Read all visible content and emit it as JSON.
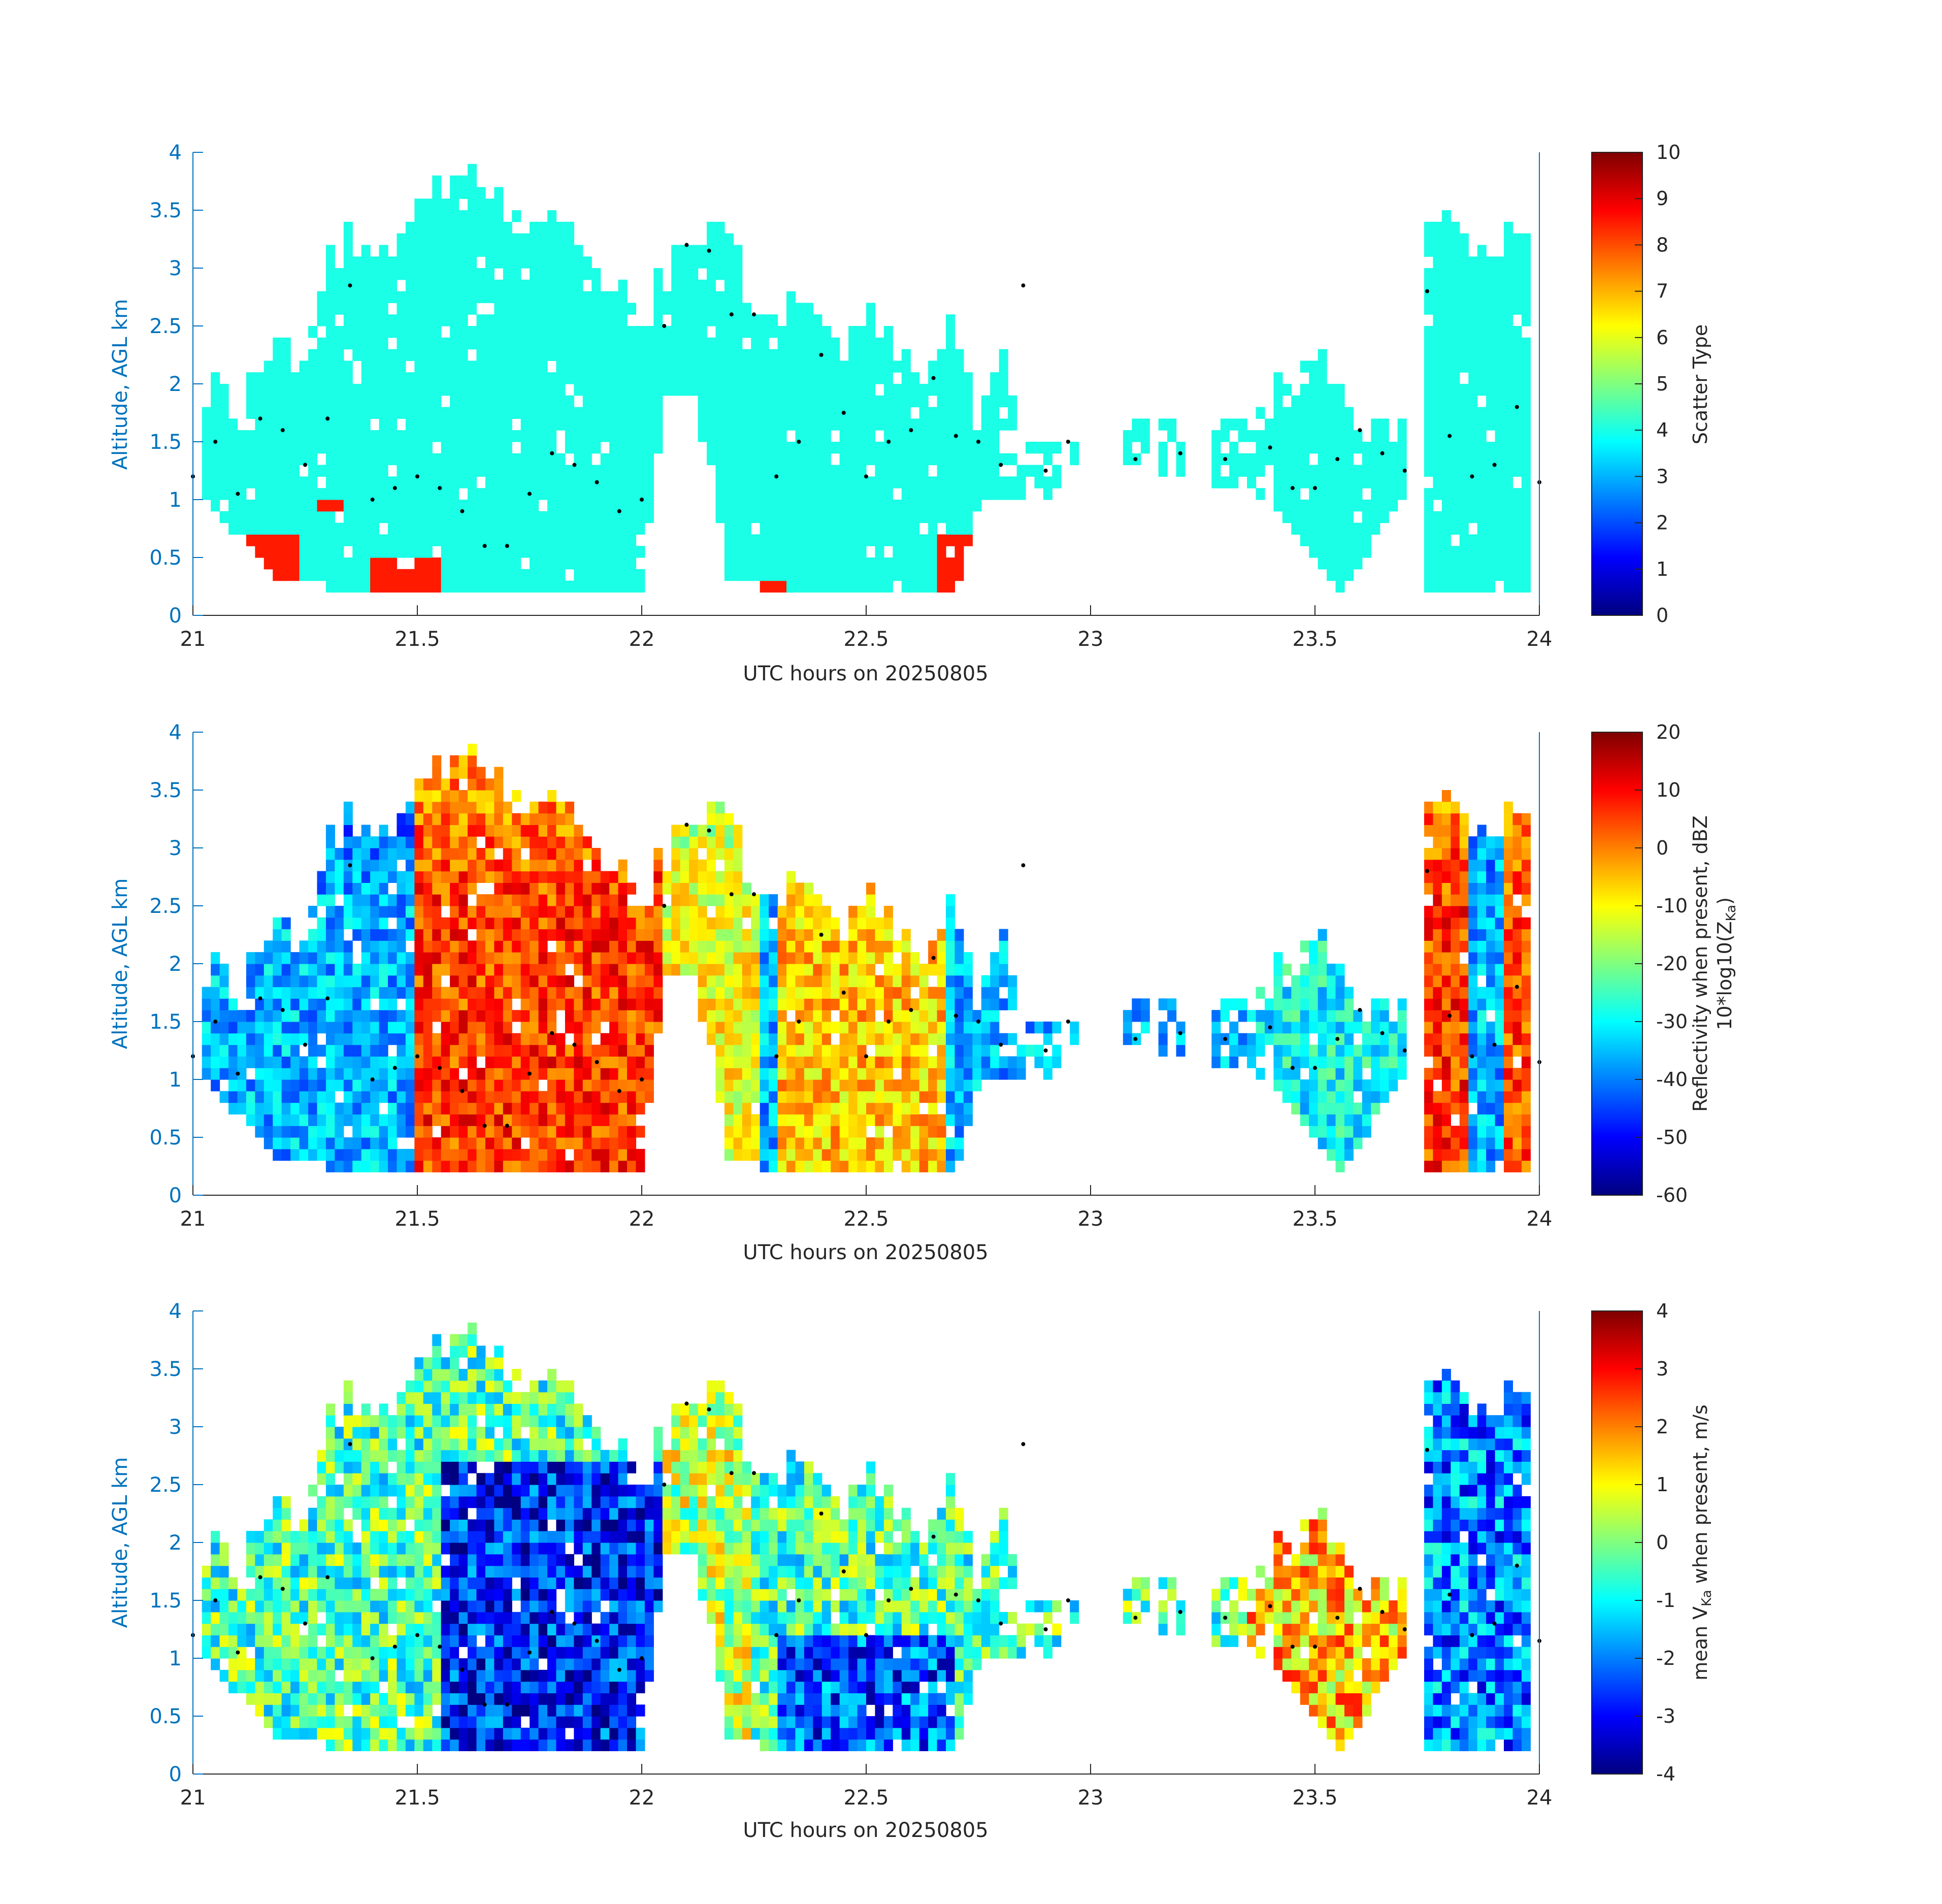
{
  "figure": {
    "xlabel": "UTC hours on 20250805",
    "ylabel": "Altitude, AGL km",
    "xlim": [
      21,
      24
    ],
    "ylim": [
      0,
      4
    ],
    "xticks": [
      "21",
      "21.5",
      "22",
      "22.5",
      "23",
      "23.5",
      "24"
    ],
    "yticks": [
      "0",
      "0.5",
      "1",
      "1.5",
      "2",
      "2.5",
      "3",
      "3.5",
      "4"
    ],
    "colormap": "jet",
    "axis_color": "#0072bd",
    "text_color": "#262626"
  },
  "chart_data": [
    {
      "type": "heatmap",
      "panel": "scatter-type",
      "xlabel": "UTC hours on 20250805",
      "ylabel": "Altitude, AGL km",
      "xlim": [
        21,
        24
      ],
      "ylim": [
        0,
        4
      ],
      "colorbar": {
        "label": "Scatter Type",
        "clim": [
          0,
          10
        ],
        "ticks": [
          "0",
          "1",
          "2",
          "3",
          "4",
          "5",
          "6",
          "7",
          "8",
          "9",
          "10"
        ]
      },
      "cloud_top_km": [
        [
          21.0,
          1.7
        ],
        [
          21.05,
          2.0
        ],
        [
          21.1,
          1.6
        ],
        [
          21.15,
          2.3
        ],
        [
          21.2,
          2.5
        ],
        [
          21.25,
          2.0
        ],
        [
          21.3,
          3.1
        ],
        [
          21.35,
          3.3
        ],
        [
          21.4,
          3.1
        ],
        [
          21.45,
          3.1
        ],
        [
          21.5,
          3.5
        ],
        [
          21.55,
          3.7
        ],
        [
          21.6,
          3.8
        ],
        [
          21.65,
          3.7
        ],
        [
          21.7,
          3.4
        ],
        [
          21.75,
          3.5
        ],
        [
          21.8,
          3.6
        ],
        [
          21.85,
          3.3
        ],
        [
          21.9,
          3.1
        ],
        [
          21.95,
          2.8
        ],
        [
          22.0,
          2.5
        ],
        [
          22.05,
          2.9
        ],
        [
          22.1,
          3.2
        ],
        [
          22.15,
          3.3
        ],
        [
          22.2,
          3.2
        ],
        [
          22.25,
          2.7
        ],
        [
          22.3,
          2.6
        ],
        [
          22.35,
          2.6
        ],
        [
          22.4,
          2.5
        ],
        [
          22.45,
          2.4
        ],
        [
          22.5,
          2.6
        ],
        [
          22.55,
          2.5
        ],
        [
          22.6,
          2.2
        ],
        [
          22.65,
          2.1
        ],
        [
          22.7,
          2.5
        ],
        [
          22.75,
          1.6
        ],
        [
          22.8,
          2.5
        ],
        [
          22.85,
          1.5
        ],
        [
          22.9,
          1.4
        ],
        [
          22.95,
          1.6
        ],
        [
          23.0,
          1.5
        ],
        [
          23.1,
          1.6
        ],
        [
          23.2,
          1.6
        ],
        [
          23.3,
          1.6
        ],
        [
          23.4,
          1.9
        ],
        [
          23.45,
          2.0
        ],
        [
          23.5,
          2.3
        ],
        [
          23.55,
          1.9
        ],
        [
          23.6,
          1.7
        ],
        [
          23.65,
          1.6
        ],
        [
          23.7,
          1.5
        ],
        [
          23.75,
          3.2
        ],
        [
          23.8,
          3.4
        ],
        [
          23.85,
          3.0
        ],
        [
          23.9,
          3.2
        ],
        [
          23.95,
          3.3
        ],
        [
          24.0,
          3.3
        ]
      ],
      "cloud_base_km": [
        [
          21.0,
          1.1
        ],
        [
          21.2,
          0.3
        ],
        [
          21.4,
          0.2
        ],
        [
          21.5,
          0.2
        ],
        [
          22.0,
          0.2
        ],
        [
          22.05,
          1.9
        ],
        [
          22.15,
          1.4
        ],
        [
          22.2,
          0.2
        ],
        [
          22.3,
          0.2
        ],
        [
          22.7,
          0.2
        ],
        [
          22.75,
          1.0
        ],
        [
          22.9,
          1.0
        ],
        [
          23.0,
          1.4
        ],
        [
          23.1,
          1.3
        ],
        [
          23.4,
          1.0
        ],
        [
          23.55,
          0.2
        ],
        [
          23.7,
          1.0
        ],
        [
          23.75,
          0.2
        ],
        [
          24.0,
          0.2
        ]
      ],
      "cloud_base_series_km": [
        [
          21.0,
          1.2
        ],
        [
          21.05,
          1.5
        ],
        [
          21.1,
          1.05
        ],
        [
          21.15,
          1.7
        ],
        [
          21.2,
          1.6
        ],
        [
          21.25,
          1.3
        ],
        [
          21.3,
          1.7
        ],
        [
          21.35,
          2.85
        ],
        [
          21.4,
          1.0
        ],
        [
          21.45,
          1.1
        ],
        [
          21.5,
          1.2
        ],
        [
          21.55,
          1.1
        ],
        [
          21.6,
          0.9
        ],
        [
          21.65,
          0.6
        ],
        [
          21.7,
          0.6
        ],
        [
          21.75,
          1.05
        ],
        [
          21.8,
          1.4
        ],
        [
          21.85,
          1.3
        ],
        [
          21.9,
          1.15
        ],
        [
          21.95,
          0.9
        ],
        [
          22.0,
          1.0
        ],
        [
          22.05,
          2.5
        ],
        [
          22.1,
          3.2
        ],
        [
          22.15,
          3.15
        ],
        [
          22.2,
          2.6
        ],
        [
          22.25,
          2.6
        ],
        [
          22.3,
          1.2
        ],
        [
          22.35,
          1.5
        ],
        [
          22.4,
          2.25
        ],
        [
          22.45,
          1.75
        ],
        [
          22.5,
          1.2
        ],
        [
          22.55,
          1.5
        ],
        [
          22.6,
          1.6
        ],
        [
          22.65,
          2.05
        ],
        [
          22.7,
          1.55
        ],
        [
          22.75,
          1.5
        ],
        [
          22.8,
          1.3
        ],
        [
          22.85,
          2.85
        ],
        [
          22.9,
          1.25
        ],
        [
          22.95,
          1.5
        ],
        [
          23.1,
          1.35
        ],
        [
          23.2,
          1.4
        ],
        [
          23.3,
          1.35
        ],
        [
          23.4,
          1.45
        ],
        [
          23.45,
          1.1
        ],
        [
          23.5,
          1.1
        ],
        [
          23.55,
          1.35
        ],
        [
          23.6,
          1.6
        ],
        [
          23.65,
          1.4
        ],
        [
          23.7,
          1.25
        ],
        [
          23.75,
          2.8
        ],
        [
          23.8,
          1.55
        ],
        [
          23.85,
          1.2
        ],
        [
          23.9,
          1.3
        ],
        [
          23.95,
          1.8
        ],
        [
          24.0,
          1.15
        ]
      ],
      "dominant_value": 4,
      "secondary_value": 8.5
    },
    {
      "type": "heatmap",
      "panel": "reflectivity",
      "xlabel": "UTC hours on 20250805",
      "ylabel": "Altitude, AGL km",
      "xlim": [
        21,
        24
      ],
      "ylim": [
        0,
        4
      ],
      "colorbar": {
        "label_line1": "Reflectivity when present, dBZ",
        "label_line2": "10*log10(Z",
        "label_sub": "Ka",
        "label_end": ")",
        "clim": [
          -60,
          20
        ],
        "ticks": [
          "-60",
          "-50",
          "-40",
          "-30",
          "-20",
          "-10",
          "0",
          "10",
          "20"
        ]
      }
    },
    {
      "type": "heatmap",
      "panel": "doppler-velocity",
      "xlabel": "UTC hours on 20250805",
      "ylabel": "Altitude, AGL km",
      "xlim": [
        21,
        24
      ],
      "ylim": [
        0,
        4
      ],
      "colorbar": {
        "label_pre": "mean V",
        "label_sub": "Ka",
        "label_post": " when present, m/s",
        "clim": [
          -4,
          4
        ],
        "ticks": [
          "-4",
          "-3",
          "-2",
          "-1",
          "0",
          "1",
          "2",
          "3",
          "4"
        ]
      }
    }
  ]
}
